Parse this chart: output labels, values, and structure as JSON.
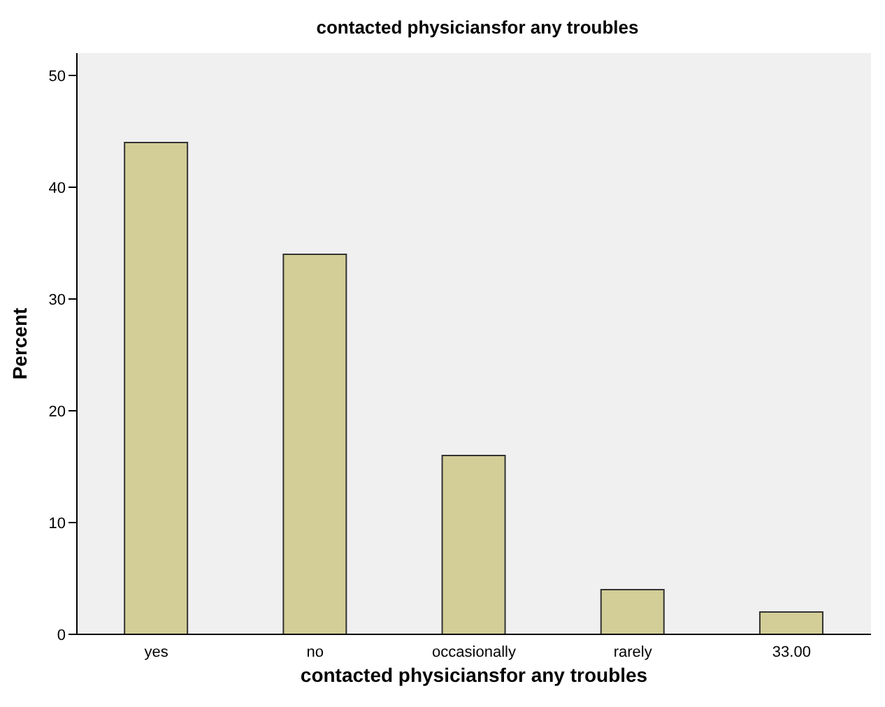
{
  "chart_data": {
    "type": "bar",
    "title": "contacted physiciansfor any troubles",
    "xlabel": "contacted physiciansfor any troubles",
    "ylabel": "Percent",
    "categories": [
      "yes",
      "no",
      "occasionally",
      "rarely",
      "33.00"
    ],
    "values": [
      44,
      34,
      16,
      4,
      2
    ],
    "color": "#d3ce97",
    "ylim": [
      0,
      52
    ],
    "yticks": [
      0,
      10,
      20,
      30,
      40,
      50
    ]
  }
}
